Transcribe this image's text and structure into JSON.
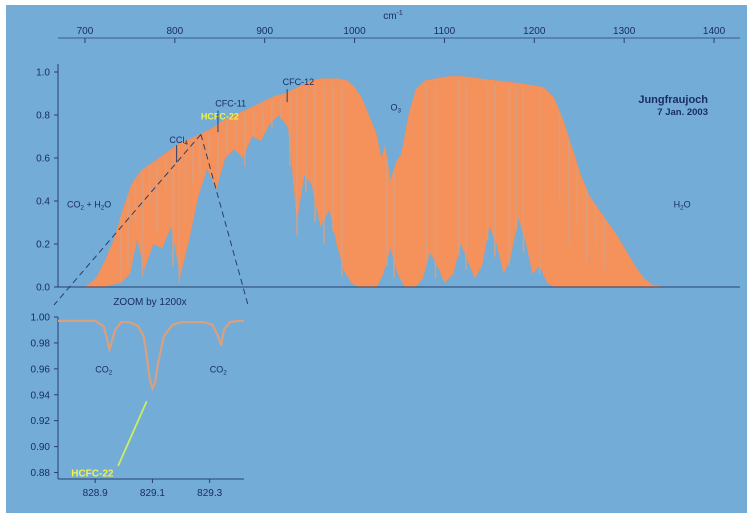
{
  "colors": {
    "background": "#73acd6",
    "spectrum_fill": "#f5915a",
    "spectrum_line": "#d9a080",
    "axis_text": "#1a2d63",
    "highlight": "#f2f248",
    "leader_line": "#c8ee66"
  },
  "chart_data": [
    {
      "type": "area",
      "xlabel": "cm",
      "xlabel_sup": "-1",
      "x_ticks": [
        700,
        800,
        900,
        1000,
        1100,
        1200,
        1300,
        1400
      ],
      "y_ticks": [
        "0.0",
        "0.2",
        "0.4",
        "0.6",
        "0.8",
        "1.0"
      ],
      "xlim": [
        670,
        1420
      ],
      "ylim": [
        0,
        1
      ],
      "grid": false,
      "site": "Jungfraujoch",
      "date": "7 Jan. 2003",
      "annotations": [
        {
          "text": "CO",
          "sub": "2",
          "text2": " + H",
          "sub2": "2",
          "text3": "O",
          "x": 680,
          "y": 0.37,
          "highlight": false
        },
        {
          "text": "CCl",
          "sub": "4",
          "x": 794,
          "y": 0.67,
          "highlight": false
        },
        {
          "text": "HCFC-22",
          "x": 829,
          "y": 0.78,
          "highlight": true
        },
        {
          "text": "CFC-11",
          "x": 845,
          "y": 0.84,
          "highlight": false
        },
        {
          "text": "CFC-12",
          "x": 920,
          "y": 0.94,
          "highlight": false
        },
        {
          "text": "O",
          "sub": "3",
          "x": 1040,
          "y": 0.82,
          "highlight": false
        },
        {
          "text": "H",
          "sub": "2",
          "text2": "O",
          "x": 1355,
          "y": 0.37,
          "highlight": false
        }
      ],
      "upper_envelope": [
        [
          670,
          0.0
        ],
        [
          700,
          0.0
        ],
        [
          712,
          0.04
        ],
        [
          722,
          0.12
        ],
        [
          732,
          0.22
        ],
        [
          742,
          0.36
        ],
        [
          752,
          0.48
        ],
        [
          762,
          0.54
        ],
        [
          772,
          0.57
        ],
        [
          782,
          0.6
        ],
        [
          792,
          0.63
        ],
        [
          802,
          0.66
        ],
        [
          812,
          0.68
        ],
        [
          822,
          0.7
        ],
        [
          832,
          0.72
        ],
        [
          842,
          0.74
        ],
        [
          852,
          0.77
        ],
        [
          862,
          0.79
        ],
        [
          872,
          0.81
        ],
        [
          882,
          0.83
        ],
        [
          892,
          0.85
        ],
        [
          902,
          0.87
        ],
        [
          912,
          0.89
        ],
        [
          922,
          0.9
        ],
        [
          932,
          0.92
        ],
        [
          942,
          0.94
        ],
        [
          952,
          0.96
        ],
        [
          962,
          0.97
        ],
        [
          972,
          0.97
        ],
        [
          982,
          0.97
        ],
        [
          992,
          0.96
        ],
        [
          1000,
          0.93
        ],
        [
          1008,
          0.88
        ],
        [
          1016,
          0.8
        ],
        [
          1024,
          0.72
        ],
        [
          1030,
          0.6
        ],
        [
          1034,
          0.66
        ],
        [
          1040,
          0.5
        ],
        [
          1046,
          0.58
        ],
        [
          1052,
          0.62
        ],
        [
          1060,
          0.8
        ],
        [
          1068,
          0.92
        ],
        [
          1078,
          0.96
        ],
        [
          1090,
          0.97
        ],
        [
          1105,
          0.98
        ],
        [
          1120,
          0.98
        ],
        [
          1140,
          0.97
        ],
        [
          1160,
          0.96
        ],
        [
          1180,
          0.95
        ],
        [
          1195,
          0.94
        ],
        [
          1210,
          0.93
        ],
        [
          1222,
          0.88
        ],
        [
          1232,
          0.78
        ],
        [
          1242,
          0.65
        ],
        [
          1252,
          0.52
        ],
        [
          1262,
          0.42
        ],
        [
          1272,
          0.36
        ],
        [
          1282,
          0.3
        ],
        [
          1292,
          0.24
        ],
        [
          1302,
          0.17
        ],
        [
          1312,
          0.1
        ],
        [
          1322,
          0.04
        ],
        [
          1332,
          0.01
        ],
        [
          1345,
          0.0
        ],
        [
          1420,
          0.0
        ]
      ],
      "lower_envelope": [
        [
          670,
          0.0
        ],
        [
          700,
          0.0
        ],
        [
          720,
          0.0
        ],
        [
          740,
          0.02
        ],
        [
          750,
          0.06
        ],
        [
          758,
          0.22
        ],
        [
          766,
          0.08
        ],
        [
          776,
          0.2
        ],
        [
          786,
          0.18
        ],
        [
          796,
          0.28
        ],
        [
          806,
          0.05
        ],
        [
          816,
          0.22
        ],
        [
          826,
          0.42
        ],
        [
          836,
          0.55
        ],
        [
          846,
          0.45
        ],
        [
          856,
          0.6
        ],
        [
          866,
          0.64
        ],
        [
          876,
          0.6
        ],
        [
          886,
          0.7
        ],
        [
          896,
          0.68
        ],
        [
          906,
          0.76
        ],
        [
          916,
          0.8
        ],
        [
          926,
          0.74
        ],
        [
          936,
          0.3
        ],
        [
          944,
          0.52
        ],
        [
          952,
          0.48
        ],
        [
          962,
          0.28
        ],
        [
          972,
          0.36
        ],
        [
          980,
          0.2
        ],
        [
          988,
          0.08
        ],
        [
          996,
          0.02
        ],
        [
          1004,
          0.0
        ],
        [
          1025,
          0.0
        ],
        [
          1032,
          0.06
        ],
        [
          1040,
          0.18
        ],
        [
          1048,
          0.06
        ],
        [
          1056,
          0.0
        ],
        [
          1068,
          0.0
        ],
        [
          1076,
          0.04
        ],
        [
          1084,
          0.16
        ],
        [
          1092,
          0.1
        ],
        [
          1100,
          0.02
        ],
        [
          1110,
          0.06
        ],
        [
          1118,
          0.2
        ],
        [
          1126,
          0.12
        ],
        [
          1134,
          0.04
        ],
        [
          1142,
          0.1
        ],
        [
          1150,
          0.28
        ],
        [
          1158,
          0.2
        ],
        [
          1166,
          0.06
        ],
        [
          1174,
          0.14
        ],
        [
          1182,
          0.32
        ],
        [
          1190,
          0.22
        ],
        [
          1198,
          0.06
        ],
        [
          1206,
          0.1
        ],
        [
          1214,
          0.02
        ],
        [
          1222,
          0.0
        ],
        [
          1240,
          0.0
        ],
        [
          1420,
          0.0
        ]
      ],
      "absorption_lines": [
        [
          740,
          0.02
        ],
        [
          748,
          0.1
        ],
        [
          756,
          0.3
        ],
        [
          764,
          0.05
        ],
        [
          772,
          0.4
        ],
        [
          780,
          0.25
        ],
        [
          790,
          0.45
        ],
        [
          798,
          0.1
        ],
        [
          805,
          0.02
        ],
        [
          812,
          0.3
        ],
        [
          820,
          0.48
        ],
        [
          828,
          0.52
        ],
        [
          838,
          0.6
        ],
        [
          848,
          0.5
        ],
        [
          858,
          0.62
        ],
        [
          868,
          0.66
        ],
        [
          878,
          0.56
        ],
        [
          888,
          0.7
        ],
        [
          898,
          0.72
        ],
        [
          908,
          0.74
        ],
        [
          918,
          0.78
        ],
        [
          928,
          0.56
        ],
        [
          936,
          0.24
        ],
        [
          946,
          0.44
        ],
        [
          956,
          0.3
        ],
        [
          966,
          0.2
        ],
        [
          976,
          0.26
        ],
        [
          986,
          0.05
        ],
        [
          1036,
          0.1
        ],
        [
          1044,
          0.04
        ],
        [
          1080,
          0.1
        ],
        [
          1090,
          0.04
        ],
        [
          1116,
          0.14
        ],
        [
          1124,
          0.08
        ],
        [
          1148,
          0.22
        ],
        [
          1156,
          0.14
        ],
        [
          1172,
          0.1
        ],
        [
          1180,
          0.26
        ],
        [
          1188,
          0.16
        ],
        [
          1206,
          0.06
        ],
        [
          1228,
          0.4
        ],
        [
          1238,
          0.2
        ],
        [
          1248,
          0.28
        ],
        [
          1258,
          0.12
        ],
        [
          1268,
          0.2
        ],
        [
          1278,
          0.08
        ]
      ]
    },
    {
      "type": "line",
      "title": "ZOOM by 1200x",
      "x_ticks": [
        "828.9",
        "829.1",
        "829.3"
      ],
      "x_tick_values": [
        828.9,
        829.1,
        829.3
      ],
      "y_ticks": [
        "1.00",
        "0.98",
        "0.96",
        "0.94",
        "0.92",
        "0.90",
        "0.88"
      ],
      "xlim": [
        828.77,
        829.42
      ],
      "ylim": [
        0.875,
        1.0
      ],
      "grid": false,
      "annotations": [
        {
          "text": "CO",
          "sub": "2",
          "x": 828.93,
          "y": 0.957,
          "highlight": false
        },
        {
          "text": "CO",
          "sub": "2",
          "x": 829.33,
          "y": 0.957,
          "highlight": false
        },
        {
          "text": "HCFC-22",
          "x": 828.89,
          "y": 0.877,
          "highlight": true
        }
      ],
      "x": [
        828.77,
        828.8,
        828.85,
        828.9,
        828.93,
        828.95,
        828.97,
        828.99,
        829.02,
        829.05,
        829.07,
        829.08,
        829.09,
        829.1,
        829.11,
        829.12,
        829.14,
        829.17,
        829.2,
        829.24,
        829.28,
        829.31,
        829.33,
        829.34,
        829.35,
        829.37,
        829.4,
        829.42
      ],
      "y": [
        0.997,
        0.997,
        0.997,
        0.997,
        0.993,
        0.975,
        0.99,
        0.996,
        0.996,
        0.993,
        0.985,
        0.97,
        0.953,
        0.945,
        0.95,
        0.965,
        0.985,
        0.994,
        0.996,
        0.996,
        0.996,
        0.994,
        0.985,
        0.978,
        0.99,
        0.996,
        0.997,
        0.997
      ]
    }
  ]
}
